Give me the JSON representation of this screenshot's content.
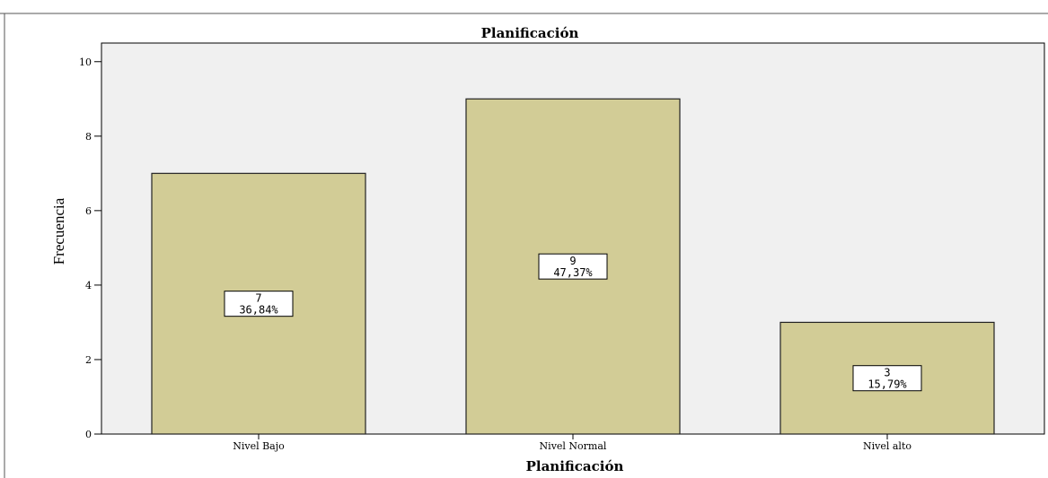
{
  "chart_data": {
    "type": "bar",
    "title": "Planificación",
    "xlabel": "Planificación",
    "ylabel": "Frecuencia",
    "categories": [
      "Nivel Bajo",
      "Nivel Normal",
      "Nivel alto"
    ],
    "values": [
      7,
      9,
      3
    ],
    "data_labels": [
      {
        "count": "7",
        "percent": "36,84%"
      },
      {
        "count": "9",
        "percent": "47,37%"
      },
      {
        "count": "3",
        "percent": "15,79%"
      }
    ],
    "ylim": [
      0,
      10.5
    ],
    "yticks": [
      0,
      2,
      4,
      6,
      8,
      10
    ],
    "grid": false,
    "legend": "none",
    "colors": {
      "bar_fill": "#d2cc96",
      "bar_stroke": "#222222",
      "plot_background": "#f0f0f0",
      "frame": "#000000"
    }
  }
}
